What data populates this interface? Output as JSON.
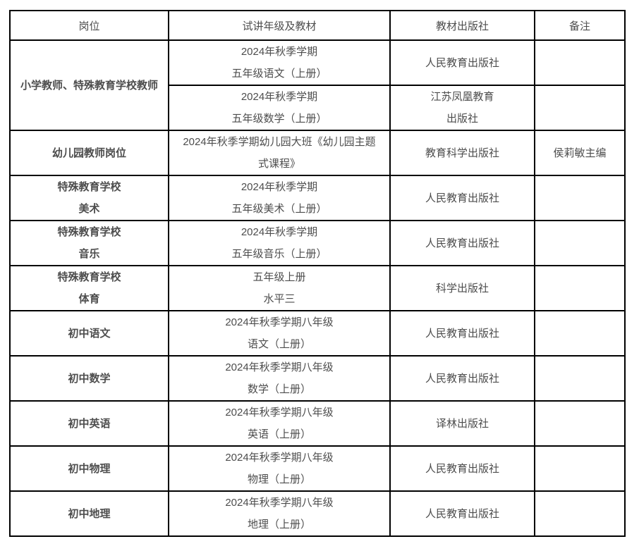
{
  "colors": {
    "border": "#000000",
    "text": "#4d4d4d",
    "background": "#ffffff"
  },
  "table": {
    "headers": [
      "岗位",
      "试讲年级及教材",
      "教材出版社",
      "备注"
    ],
    "rows": [
      {
        "position": [
          "小学教师、特殊教育学校教师"
        ],
        "material": [
          "2024年秋季学期",
          "五年级语文（上册）"
        ],
        "publisher": [
          "人民教育出版社"
        ],
        "remark": ""
      },
      {
        "position": [],
        "material": [
          "2024年秋季学期",
          "五年级数学（上册）"
        ],
        "publisher": [
          "江苏凤凰教育",
          "出版社"
        ],
        "remark": ""
      },
      {
        "position": [
          "幼儿园教师岗位"
        ],
        "material": [
          "2024年秋季学期幼儿园大班《幼儿园主题",
          "式课程》"
        ],
        "publisher": [
          "教育科学出版社"
        ],
        "remark": "侯莉敏主编"
      },
      {
        "position": [
          "特殊教育学校",
          "美术"
        ],
        "material": [
          "2024年秋季学期",
          "五年级美术（上册）"
        ],
        "publisher": [
          "人民教育出版社"
        ],
        "remark": ""
      },
      {
        "position": [
          "特殊教育学校",
          "音乐"
        ],
        "material": [
          "2024年秋季学期",
          "五年级音乐（上册）"
        ],
        "publisher": [
          "人民教育出版社"
        ],
        "remark": ""
      },
      {
        "position": [
          "特殊教育学校",
          "体育"
        ],
        "material": [
          "五年级上册",
          "水平三"
        ],
        "publisher": [
          "科学出版社"
        ],
        "remark": ""
      },
      {
        "position": [
          "初中语文"
        ],
        "material": [
          "2024年秋季学期八年级",
          "语文（上册）"
        ],
        "publisher": [
          "人民教育出版社"
        ],
        "remark": ""
      },
      {
        "position": [
          "初中数学"
        ],
        "material": [
          "2024年秋季学期八年级",
          "数学（上册）"
        ],
        "publisher": [
          "人民教育出版社"
        ],
        "remark": ""
      },
      {
        "position": [
          "初中英语"
        ],
        "material": [
          "2024年秋季学期八年级",
          "英语（上册）"
        ],
        "publisher": [
          "译林出版社"
        ],
        "remark": ""
      },
      {
        "position": [
          "初中物理"
        ],
        "material": [
          "2024年秋季学期八年级",
          "物理（上册）"
        ],
        "publisher": [
          "人民教育出版社"
        ],
        "remark": ""
      },
      {
        "position": [
          "初中地理"
        ],
        "material": [
          "2024年秋季学期八年级",
          "地理（上册）"
        ],
        "publisher": [
          "人民教育出版社"
        ],
        "remark": ""
      }
    ]
  }
}
